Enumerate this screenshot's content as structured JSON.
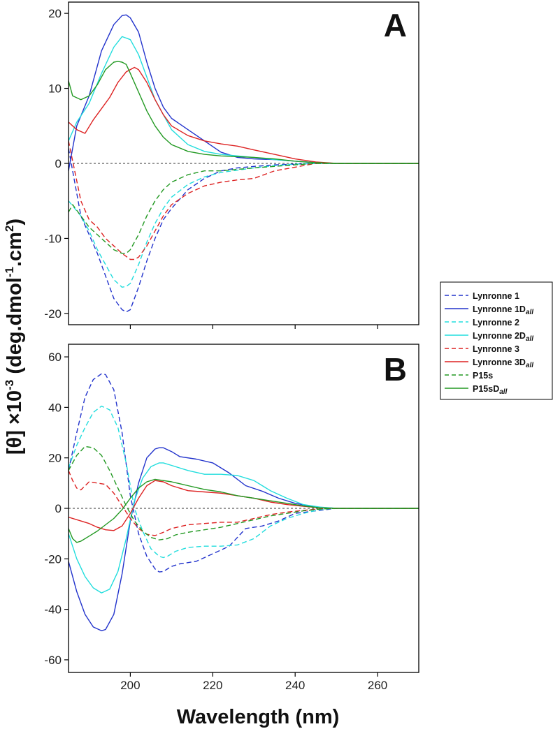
{
  "chart_data": {
    "type": "line",
    "xlabel": "Wavelength (nm)",
    "ylabel": "[θ] ×10⁻³ (deg.dmol⁻¹.cm²)",
    "ylabel_parts": {
      "main": "[θ] ×10",
      "exp1": "-3",
      "mid": " (deg.dmol",
      "exp2": "-1",
      "mid2": ".cm",
      "exp3": "2",
      "end": ")"
    },
    "xlim": [
      185,
      270
    ],
    "xticks": [
      200,
      220,
      240,
      260
    ],
    "legend": [
      {
        "base": "Lynronne 1",
        "sub": "",
        "color": "#2233cc",
        "dash": true
      },
      {
        "base": "Lynronne 1D",
        "sub": "all",
        "color": "#2233cc",
        "dash": false
      },
      {
        "base": "Lynronne 2",
        "sub": "",
        "color": "#22dddd",
        "dash": true
      },
      {
        "base": "Lynronne 2D",
        "sub": "all",
        "color": "#22dddd",
        "dash": false
      },
      {
        "base": "Lynronne 3",
        "sub": "",
        "color": "#dd2222",
        "dash": true
      },
      {
        "base": "Lynronne 3D",
        "sub": "all",
        "color": "#dd2222",
        "dash": false
      },
      {
        "base": "P15s",
        "sub": "",
        "color": "#229922",
        "dash": true
      },
      {
        "base": "P15sD",
        "sub": "all",
        "color": "#229922",
        "dash": false
      }
    ],
    "panels": [
      {
        "label": "A",
        "ylim": [
          -21.5,
          21.5
        ],
        "yticks": [
          -20,
          -10,
          0,
          10,
          20
        ],
        "series": [
          {
            "name": "Lynronne 1",
            "x": [
              185,
              188,
              190,
              192,
              194,
              196,
              198,
              199,
              200,
              202,
              204,
              206,
              208,
              210,
              214,
              218,
              222,
              226,
              230,
              235,
              240,
              245,
              250,
              260,
              270
            ],
            "y": [
              2,
              -7,
              -9.5,
              -12,
              -15,
              -18,
              -19.5,
              -19.8,
              -19.5,
              -16.5,
              -13,
              -10,
              -7.5,
              -6,
              -3.5,
              -2,
              -1,
              -0.6,
              -0.4,
              -0.2,
              -0.1,
              0,
              0,
              0,
              0
            ]
          },
          {
            "name": "Lynronne 1D_all",
            "x": [
              185,
              187,
              190,
              193,
              196,
              198,
              199,
              200,
              202,
              204,
              206,
              208,
              210,
              214,
              218,
              222,
              226,
              230,
              235,
              240,
              245,
              250,
              260,
              270
            ],
            "y": [
              -1,
              5,
              9,
              15,
              18.5,
              19.7,
              19.8,
              19.4,
              17.5,
              13.5,
              10,
              7.5,
              6,
              4.5,
              3,
              1.5,
              0.8,
              0.6,
              0.5,
              0.3,
              0.1,
              0,
              0,
              0
            ]
          },
          {
            "name": "Lynronne 2",
            "x": [
              185,
              188,
              190,
              192,
              194,
              196,
              198,
              199,
              200,
              202,
              204,
              206,
              208,
              210,
              214,
              218,
              222,
              226,
              230,
              235,
              240,
              245,
              250,
              260,
              270
            ],
            "y": [
              -5,
              -7,
              -9,
              -11.5,
              -13.5,
              -15.5,
              -16.5,
              -16.4,
              -16,
              -13.5,
              -10.5,
              -8,
              -6,
              -4.5,
              -2.8,
              -1.8,
              -1.2,
              -0.9,
              -0.6,
              -0.3,
              -0.1,
              0,
              0,
              0,
              0
            ]
          },
          {
            "name": "Lynronne 2D_all",
            "x": [
              185,
              187,
              190,
              193,
              196,
              198,
              200,
              202,
              204,
              206,
              208,
              210,
              214,
              218,
              222,
              226,
              230,
              235,
              240,
              245,
              250,
              260,
              270
            ],
            "y": [
              3,
              5.5,
              8,
              12,
              15.5,
              16.9,
              16.5,
              14.5,
              11.5,
              8.5,
              6.5,
              4.5,
              2.5,
              1.6,
              1.2,
              1,
              0.8,
              0.5,
              0.3,
              0.1,
              0,
              0,
              0
            ]
          },
          {
            "name": "Lynronne 3",
            "x": [
              185,
              188,
              190,
              192,
              194,
              196,
              198,
              200,
              201,
              202,
              204,
              206,
              208,
              210,
              214,
              218,
              222,
              226,
              230,
              235,
              240,
              245,
              250,
              260,
              270
            ],
            "y": [
              3,
              -5,
              -7.5,
              -8.5,
              -10,
              -11,
              -12,
              -12.8,
              -12.8,
              -12.5,
              -11,
              -9,
              -7,
              -5.5,
              -4,
              -3,
              -2.5,
              -2.2,
              -2,
              -1,
              -0.5,
              0,
              0,
              0,
              0
            ]
          },
          {
            "name": "Lynronne 3D_all",
            "x": [
              185,
              187,
              189,
              191,
              193,
              195,
              197,
              199,
              201,
              202,
              204,
              206,
              208,
              210,
              214,
              218,
              222,
              226,
              230,
              235,
              240,
              245,
              250,
              260,
              270
            ],
            "y": [
              5.5,
              4.5,
              4,
              5.8,
              7.3,
              8.8,
              10.8,
              12.2,
              12.8,
              12.5,
              10.8,
              8.5,
              6.5,
              5,
              3.7,
              3,
              2.6,
              2.3,
              1.8,
              1.2,
              0.6,
              0.2,
              0,
              0,
              0
            ]
          },
          {
            "name": "P15s",
            "x": [
              185,
              186,
              188,
              190,
              192,
              194,
              196,
              198,
              199,
              200,
              202,
              204,
              206,
              208,
              210,
              214,
              218,
              222,
              226,
              230,
              235,
              240,
              245,
              250,
              260,
              270
            ],
            "y": [
              -6.5,
              -5.5,
              -7,
              -8.5,
              -9.5,
              -10.5,
              -11.5,
              -12,
              -12,
              -11.5,
              -9.5,
              -7,
              -5,
              -3.5,
              -2.5,
              -1.5,
              -1,
              -1,
              -0.8,
              -0.6,
              -0.4,
              -0.2,
              0,
              0,
              0,
              0
            ]
          },
          {
            "name": "P15sD_all",
            "x": [
              185,
              186,
              188,
              190,
              192,
              194,
              196,
              197,
              198,
              199,
              200,
              202,
              204,
              206,
              208,
              210,
              214,
              218,
              222,
              226,
              230,
              235,
              240,
              245,
              250,
              260,
              270
            ],
            "y": [
              11,
              9,
              8.5,
              9,
              10.5,
              12.5,
              13.5,
              13.6,
              13.5,
              13.2,
              12,
              9.5,
              7,
              5,
              3.5,
              2.5,
              1.6,
              1.2,
              1,
              0.9,
              0.8,
              0.6,
              0.3,
              0.1,
              0,
              0,
              0
            ]
          }
        ]
      },
      {
        "label": "B",
        "ylim": [
          -65,
          65
        ],
        "yticks": [
          -60,
          -40,
          -20,
          0,
          20,
          40,
          60
        ],
        "series": [
          {
            "name": "Lynronne 1",
            "x": [
              185,
              187,
              189,
              191,
              193,
              194,
              196,
              198,
              200,
              202,
              204,
              206,
              207,
              208,
              210,
              212,
              216,
              220,
              224,
              228,
              232,
              236,
              240,
              245,
              250,
              260,
              270
            ],
            "y": [
              15,
              30,
              44,
              51,
              53.3,
              53,
              47,
              30,
              5,
              -10,
              -19,
              -24,
              -25.2,
              -25,
              -23,
              -22,
              -21,
              -18,
              -15,
              -8,
              -7,
              -5,
              -2,
              -1,
              0,
              0,
              0
            ]
          },
          {
            "name": "Lynronne 1D_all",
            "x": [
              185,
              187,
              189,
              191,
              193,
              194,
              196,
              198,
              200,
              202,
              204,
              206,
              207,
              208,
              210,
              212,
              216,
              220,
              224,
              228,
              232,
              236,
              240,
              245,
              250,
              260,
              270
            ],
            "y": [
              -21,
              -33,
              -42,
              -47,
              -48.5,
              -48,
              -42,
              -26,
              -5,
              10,
              20,
              23.5,
              24,
              24,
              22.5,
              20.5,
              19.5,
              18,
              14,
              9,
              6.8,
              4,
              2,
              0.5,
              0,
              0,
              0
            ]
          },
          {
            "name": "Lynronne 2",
            "x": [
              185,
              187,
              189,
              191,
              193,
              195,
              197,
              199,
              201,
              203,
              205,
              207,
              208,
              209,
              211,
              214,
              218,
              222,
              226,
              230,
              234,
              238,
              242,
              246,
              250,
              260,
              270
            ],
            "y": [
              16,
              25,
              32,
              38,
              40.5,
              39,
              32,
              18,
              0,
              -9,
              -16,
              -19,
              -19.5,
              -19,
              -17,
              -15.5,
              -15,
              -15,
              -14.5,
              -12,
              -7,
              -4,
              -2,
              -0.5,
              0,
              0,
              0
            ]
          },
          {
            "name": "Lynronne 2D_all",
            "x": [
              185,
              187,
              189,
              191,
              193,
              195,
              197,
              199,
              201,
              203,
              205,
              207,
              208,
              210,
              214,
              218,
              222,
              226,
              230,
              234,
              238,
              242,
              246,
              250,
              260,
              270
            ],
            "y": [
              -10,
              -20,
              -27,
              -31.5,
              -33.5,
              -32,
              -25,
              -12,
              3,
              12,
              16.5,
              18,
              18,
              17,
              15,
              13.5,
              13.5,
              13,
              11,
              7,
              4,
              1.5,
              0.5,
              0,
              0,
              0
            ]
          },
          {
            "name": "Lynronne 3",
            "x": [
              185,
              186,
              187,
              188,
              190,
              192,
              194,
              196,
              198,
              200,
              202,
              204,
              206,
              208,
              210,
              214,
              218,
              222,
              226,
              230,
              234,
              238,
              242,
              246,
              250,
              260,
              270
            ],
            "y": [
              15,
              11,
              8,
              7.3,
              10.5,
              10,
              9.5,
              6,
              1,
              -4,
              -8,
              -10.3,
              -10.8,
              -9.5,
              -8,
              -6.5,
              -6,
              -5.5,
              -5.5,
              -4,
              -2.5,
              -1.5,
              -0.8,
              -0.2,
              0,
              0,
              0
            ]
          },
          {
            "name": "Lynronne 3D_all",
            "x": [
              185,
              188,
              190,
              192,
              194,
              196,
              198,
              200,
              202,
              204,
              206,
              208,
              210,
              214,
              218,
              222,
              226,
              230,
              234,
              238,
              242,
              246,
              250,
              260,
              270
            ],
            "y": [
              -3.5,
              -5,
              -6,
              -7.5,
              -8.5,
              -8.8,
              -7,
              -2,
              4,
              9,
              11,
              10.5,
              9,
              7,
              6.5,
              6,
              5,
              4,
              2.5,
              1.5,
              0.8,
              0.2,
              0,
              0,
              0
            ]
          },
          {
            "name": "P15s",
            "x": [
              185,
              187,
              189,
              191,
              193,
              195,
              197,
              199,
              201,
              203,
              205,
              207,
              209,
              211,
              214,
              218,
              222,
              226,
              230,
              234,
              238,
              242,
              246,
              250,
              260,
              270
            ],
            "y": [
              15,
              21,
              24.5,
              24,
              21,
              15,
              8,
              1,
              -5,
              -9,
              -11.5,
              -12.5,
              -12,
              -10.5,
              -9.5,
              -8.5,
              -7.5,
              -6,
              -4.5,
              -3,
              -2,
              -1,
              -0.3,
              0,
              0,
              0
            ]
          },
          {
            "name": "P15sD_all",
            "x": [
              185,
              186,
              187,
              188,
              190,
              192,
              194,
              196,
              198,
              200,
              202,
              204,
              206,
              208,
              210,
              214,
              218,
              222,
              226,
              230,
              234,
              238,
              242,
              246,
              250,
              260,
              270
            ],
            "y": [
              -8,
              -12,
              -13.5,
              -13,
              -11,
              -9,
              -6.5,
              -4,
              -0.5,
              4,
              8,
              10.5,
              11.5,
              11,
              10.5,
              9,
              7.5,
              6.5,
              5,
              4,
              3,
              2,
              1,
              0.2,
              0,
              0,
              0
            ]
          }
        ]
      }
    ]
  }
}
